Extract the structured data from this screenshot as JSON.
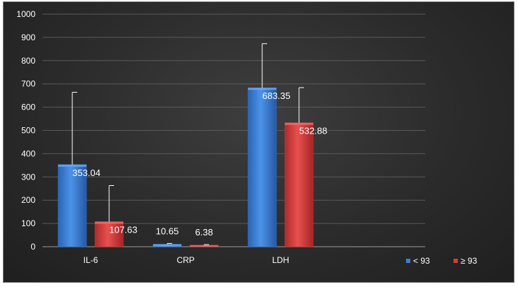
{
  "chart_data": {
    "type": "bar",
    "categories": [
      "IL-6",
      "CRP",
      "LDH"
    ],
    "series": [
      {
        "name": "< 93",
        "color": "#3a7fd6",
        "values": [
          353.04,
          10.65,
          683.35
        ],
        "error_upper": [
          664,
          14,
          873
        ]
      },
      {
        "name": "≥ 93",
        "color": "#d93a3a",
        "values": [
          107.63,
          6.38,
          532.88
        ],
        "error_upper": [
          263,
          9,
          684
        ]
      }
    ],
    "data_labels": [
      [
        "353.04",
        "10.65",
        "683.35"
      ],
      [
        "107.63",
        "6.38",
        "532.88"
      ]
    ],
    "ylim": [
      0,
      1000
    ],
    "yticks": [
      0,
      100,
      200,
      300,
      400,
      500,
      600,
      700,
      800,
      900,
      1000
    ],
    "grid": true,
    "legend_position": "bottom-right",
    "title": "",
    "xlabel": "",
    "ylabel": ""
  }
}
